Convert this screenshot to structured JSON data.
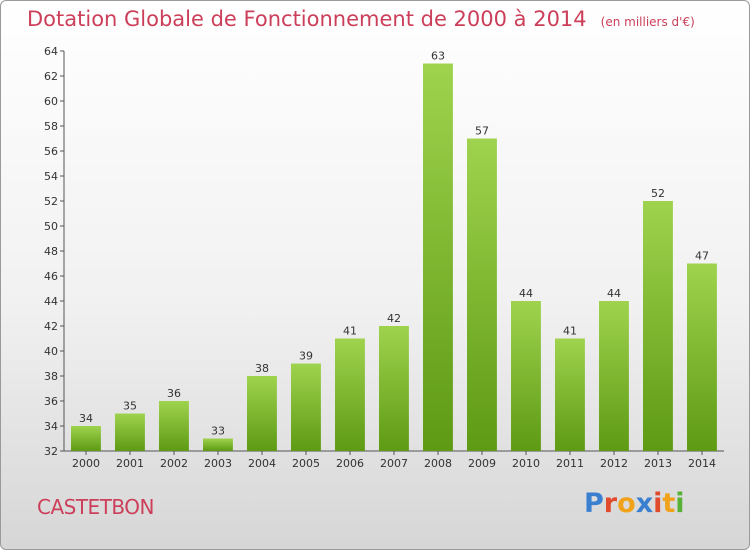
{
  "header": {
    "title": "Dotation Globale de Fonctionnement de 2000 à 2014",
    "unit": "(en milliers d'€)"
  },
  "footer": {
    "commune": "CASTETBON",
    "logo_text": "Proxiti"
  },
  "colors": {
    "title": "#cc3f5a",
    "bar_top": "#9fd34e",
    "bar_bottom": "#5e9a14",
    "logo_letters": [
      "#3a7fd0",
      "#e14a2c",
      "#f0a21b",
      "#3a7fd0",
      "#e14a2c",
      "#f0a21b",
      "#56b134"
    ]
  },
  "chart_data": {
    "type": "bar",
    "title": "Dotation Globale de Fonctionnement de 2000 à 2014",
    "subtitle": "(en milliers d'€)",
    "xlabel": "",
    "ylabel": "",
    "categories": [
      "2000",
      "2001",
      "2002",
      "2003",
      "2004",
      "2005",
      "2006",
      "2007",
      "2008",
      "2009",
      "2010",
      "2011",
      "2012",
      "2013",
      "2014"
    ],
    "values": [
      34,
      35,
      36,
      33,
      38,
      39,
      41,
      42,
      63,
      57,
      44,
      41,
      44,
      52,
      47
    ],
    "ylim": [
      32,
      64
    ],
    "yticks": [
      32,
      34,
      36,
      38,
      40,
      42,
      44,
      46,
      48,
      50,
      52,
      54,
      56,
      58,
      60,
      62,
      64
    ],
    "grid": false,
    "legend": "none"
  }
}
